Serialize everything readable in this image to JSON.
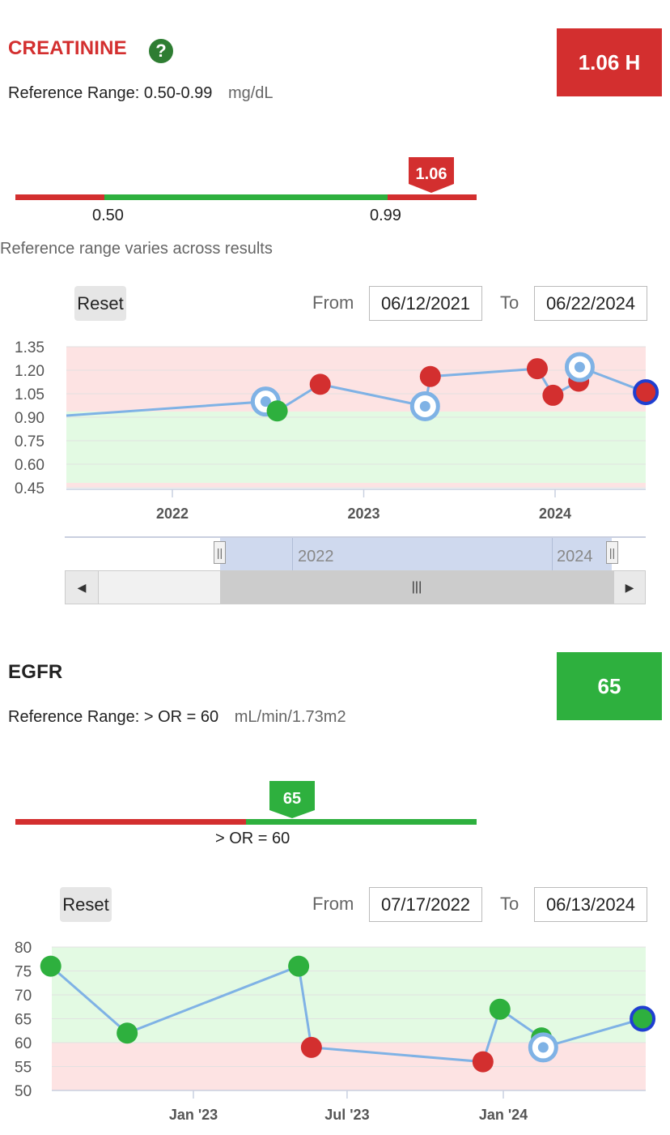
{
  "tests": [
    {
      "name": "CREATININE",
      "help_icon": "question-circle-icon",
      "ref_label": "Reference Range:",
      "ref_value": "0.50-0.99",
      "unit": "mg/dL",
      "current_badge": "1.06 H",
      "current_value": 1.06,
      "current_value_label": "1.06",
      "badge_color": "#d32f2f",
      "range_low": 0.5,
      "range_high": 0.99,
      "range_low_label": "0.50",
      "range_high_label": "0.99",
      "range_note": "Reference range varies across results",
      "reset_label": "Reset",
      "from_label": "From",
      "from_date": "06/12/2021",
      "to_label": "To",
      "to_date": "06/22/2024",
      "navigator_labels": [
        "2022",
        "2024"
      ]
    },
    {
      "name": "EGFR",
      "ref_label": "Reference Range:",
      "ref_value": "> OR = 60",
      "unit": "mL/min/1.73m2",
      "current_badge": "65",
      "current_value": 65,
      "current_value_label": "65",
      "badge_color": "#2eb03e",
      "range_low": 60,
      "range_label": "> OR = 60",
      "reset_label": "Reset",
      "from_label": "From",
      "from_date": "07/17/2022",
      "to_label": "To",
      "to_date": "06/13/2024"
    }
  ],
  "colors": {
    "high": "#d32f2f",
    "normal": "#2eb03e",
    "line": "#7fb2e5",
    "selected_ring": "#1f3fd1"
  },
  "chart_data": [
    {
      "type": "line",
      "ylim": [
        0.45,
        1.35
      ],
      "yticks": [
        "1.35",
        "1.20",
        "1.05",
        "0.90",
        "0.75",
        "0.60",
        "0.45"
      ],
      "xticks": [
        "2022",
        "2023",
        "2024"
      ],
      "reference_band": [
        0.5,
        0.99
      ],
      "points": [
        {
          "x": "2022-06-28",
          "y": 1.0,
          "status": "hollow"
        },
        {
          "x": "2022-07-20",
          "y": 0.94,
          "status": "normal"
        },
        {
          "x": "2022-10-10",
          "y": 1.11,
          "status": "high"
        },
        {
          "x": "2023-04-28",
          "y": 0.97,
          "status": "hollow"
        },
        {
          "x": "2023-05-08",
          "y": 1.16,
          "status": "high"
        },
        {
          "x": "2023-11-28",
          "y": 1.21,
          "status": "high"
        },
        {
          "x": "2023-12-28",
          "y": 1.04,
          "status": "high"
        },
        {
          "x": "2024-02-15",
          "y": 1.13,
          "status": "high"
        },
        {
          "x": "2024-02-17",
          "y": 1.22,
          "status": "hollow"
        },
        {
          "x": "2024-06-22",
          "y": 1.06,
          "status": "high-selected"
        }
      ]
    },
    {
      "type": "line",
      "ylim": [
        50,
        80
      ],
      "yticks": [
        "80",
        "75",
        "70",
        "65",
        "60",
        "55",
        "50"
      ],
      "xticks": [
        "Jan '23",
        "Jul '23",
        "Jan '24"
      ],
      "reference_low": 60,
      "points": [
        {
          "x": "2022-07-17",
          "y": 76,
          "status": "normal"
        },
        {
          "x": "2022-10-15",
          "y": 62,
          "status": "normal"
        },
        {
          "x": "2023-05-05",
          "y": 76,
          "status": "normal"
        },
        {
          "x": "2023-05-20",
          "y": 59,
          "status": "high"
        },
        {
          "x": "2023-12-08",
          "y": 56,
          "status": "high"
        },
        {
          "x": "2023-12-28",
          "y": 67,
          "status": "normal"
        },
        {
          "x": "2024-02-15",
          "y": 61,
          "status": "normal"
        },
        {
          "x": "2024-02-17",
          "y": 59,
          "status": "hollow"
        },
        {
          "x": "2024-06-13",
          "y": 65,
          "status": "normal-selected"
        }
      ]
    }
  ]
}
